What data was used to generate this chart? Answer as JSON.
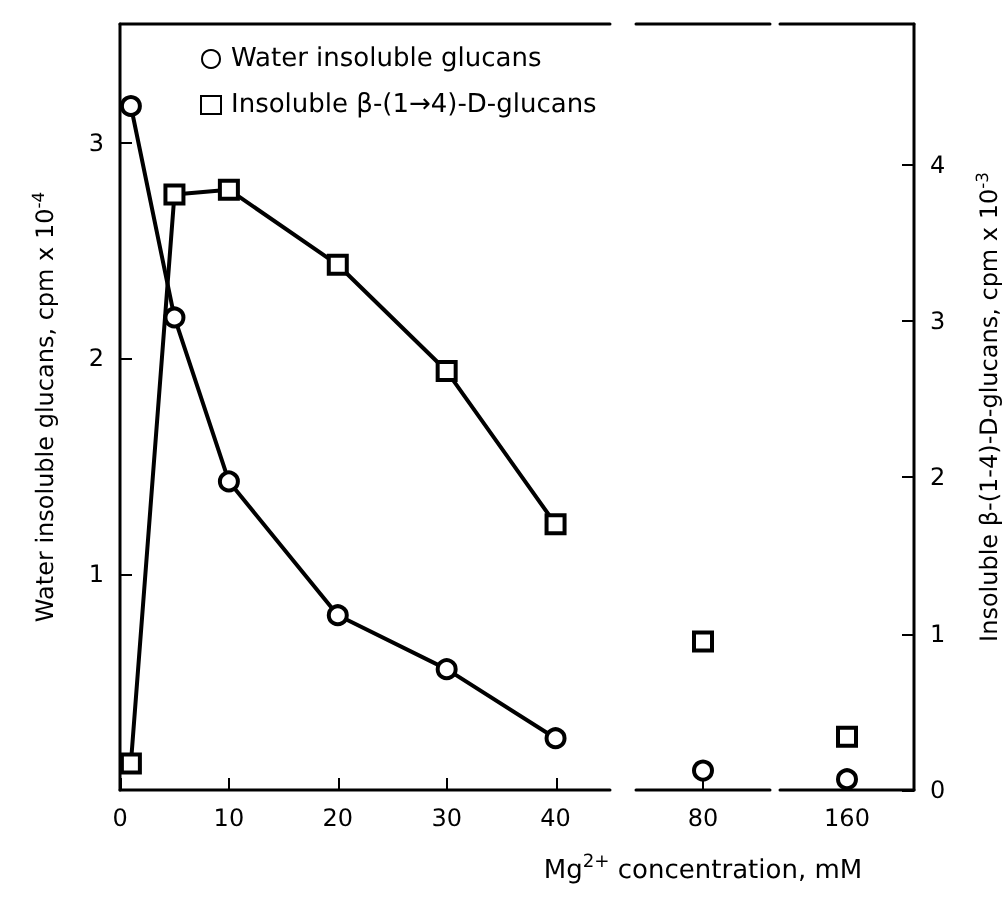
{
  "chart_data": [
    {
      "type": "line",
      "xlim": [
        0,
        45
      ],
      "xticks": [
        0,
        10,
        20,
        30,
        40
      ],
      "ylim": [
        0,
        3.55
      ],
      "yticks": [
        1,
        2,
        3
      ],
      "y2lim": [
        0,
        4.9
      ],
      "ylabel": "Water insoluble glucans, cpm x 10$^{-4}$",
      "legend": "top",
      "series": [
        {
          "name": "Water insoluble glucans",
          "color": "#000000",
          "marker": "circle",
          "x": [
            1,
            5,
            10,
            20,
            30,
            40
          ],
          "values": [
            3.17,
            2.19,
            1.43,
            0.81,
            0.56,
            0.24
          ]
        },
        {
          "name": "Insoluble β-(1→4)-D-glucans",
          "color": "#000000",
          "marker": "square",
          "axis": "y2",
          "x": [
            1,
            5,
            10,
            20,
            30,
            40
          ],
          "values": [
            0.17,
            3.81,
            3.84,
            3.36,
            2.68,
            1.7
          ]
        }
      ]
    },
    {
      "type": "line",
      "categories": [
        "80"
      ],
      "ylim": [
        0,
        3.55
      ],
      "y2lim": [
        0,
        4.9
      ],
      "xlabel": "Mg$^{2+}$ concentration, mM",
      "tick_labels": "x",
      "series": [
        {
          "color": "#000000",
          "marker": "circle",
          "values": [
            0.09
          ]
        },
        {
          "color": "#000000",
          "marker": "square",
          "axis": "y2",
          "values": [
            0.95
          ]
        }
      ]
    },
    {
      "type": "line",
      "categories": [
        "160"
      ],
      "ylim": [
        0,
        3.55
      ],
      "y2lim": [
        0,
        4.9
      ],
      "y2ticks": [
        0,
        1,
        2,
        3,
        4
      ],
      "y2label": "Insoluble β-(1-4)-D-glucans, cpm x 10$^{-3}$",
      "series": [
        {
          "color": "#000000",
          "marker": "circle",
          "values": [
            0.05
          ]
        },
        {
          "color": "#000000",
          "marker": "square",
          "axis": "y2",
          "values": [
            0.34
          ]
        }
      ]
    }
  ]
}
